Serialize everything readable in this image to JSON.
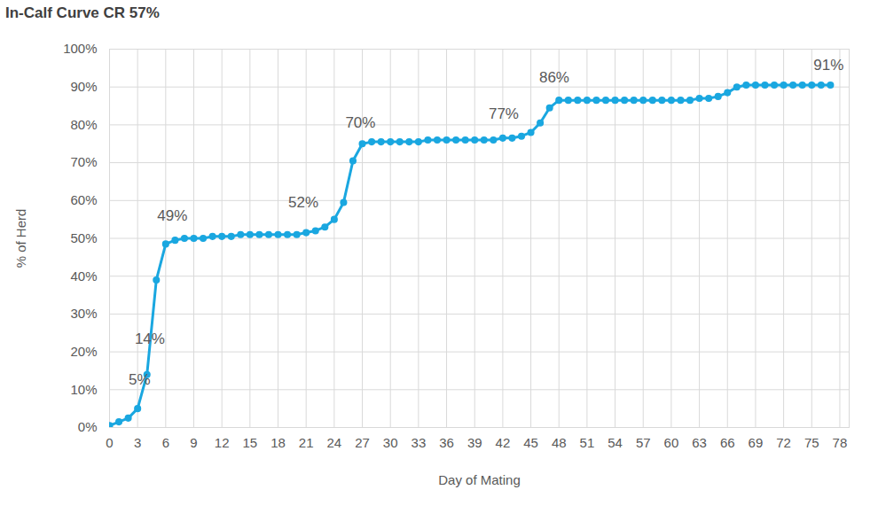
{
  "chart_data": {
    "type": "line",
    "title": "In-Calf Curve CR 57%",
    "x_label": "Day of Mating",
    "y_label": "% of Herd",
    "x": [
      0,
      1,
      2,
      3,
      4,
      5,
      6,
      7,
      8,
      9,
      10,
      11,
      12,
      13,
      14,
      15,
      16,
      17,
      18,
      19,
      20,
      21,
      22,
      23,
      24,
      25,
      26,
      27,
      28,
      29,
      30,
      31,
      32,
      33,
      34,
      35,
      36,
      37,
      38,
      39,
      40,
      41,
      42,
      43,
      44,
      45,
      46,
      47,
      48,
      49,
      50,
      51,
      52,
      53,
      54,
      55,
      56,
      57,
      58,
      59,
      60,
      61,
      62,
      63,
      64,
      65,
      66,
      67,
      68,
      69,
      70,
      71,
      72,
      73,
      74,
      75,
      76,
      77
    ],
    "series": [
      {
        "name": "% of Herd",
        "color": "#1aa7e0",
        "marker": "circle",
        "line_style": "solid",
        "values": [
          0.5,
          1.5,
          2.5,
          5,
          14,
          39,
          48.5,
          49.5,
          50,
          50,
          50,
          50.5,
          50.5,
          50.5,
          51,
          51,
          51,
          51,
          51,
          51,
          51,
          51.5,
          52,
          53,
          55,
          59.5,
          70.5,
          75,
          75.5,
          75.5,
          75.5,
          75.5,
          75.5,
          75.5,
          76,
          76,
          76,
          76,
          76,
          76,
          76,
          76,
          76.5,
          76.5,
          77,
          78,
          80.5,
          84.5,
          86.5,
          86.5,
          86.5,
          86.5,
          86.5,
          86.5,
          86.5,
          86.5,
          86.5,
          86.5,
          86.5,
          86.5,
          86.5,
          86.5,
          86.5,
          87,
          87,
          87.5,
          88.5,
          90,
          90.5,
          90.5,
          90.5,
          90.5,
          90.5,
          90.5,
          90.5,
          90.5,
          90.5,
          90.5
        ]
      }
    ],
    "xlim": [
      0,
      79
    ],
    "xticks": [
      0,
      3,
      6,
      9,
      12,
      15,
      18,
      21,
      24,
      27,
      30,
      33,
      36,
      39,
      42,
      45,
      48,
      51,
      54,
      57,
      60,
      63,
      66,
      69,
      72,
      75,
      78
    ],
    "ylim": [
      0,
      100
    ],
    "yticks": [
      {
        "value": 0,
        "label": "0%"
      },
      {
        "value": 10,
        "label": "10%"
      },
      {
        "value": 20,
        "label": "20%"
      },
      {
        "value": 30,
        "label": "30%"
      },
      {
        "value": 40,
        "label": "40%"
      },
      {
        "value": 50,
        "label": "50%"
      },
      {
        "value": 60,
        "label": "60%"
      },
      {
        "value": 70,
        "label": "70%"
      },
      {
        "value": 80,
        "label": "80%"
      },
      {
        "value": 90,
        "label": "90%"
      },
      {
        "value": 100,
        "label": "100%"
      }
    ],
    "grid": true,
    "annotations": [
      {
        "text": "5%",
        "x": 3.2,
        "y": 12.6
      },
      {
        "text": "14%",
        "x": 4.3,
        "y": 23.4
      },
      {
        "text": "49%",
        "x": 6.7,
        "y": 56
      },
      {
        "text": "52%",
        "x": 20.7,
        "y": 59.5
      },
      {
        "text": "70%",
        "x": 26.8,
        "y": 80.5
      },
      {
        "text": "77%",
        "x": 42.1,
        "y": 83
      },
      {
        "text": "86%",
        "x": 47.5,
        "y": 92.5
      },
      {
        "text": "91%",
        "x": 76.8,
        "y": 95.8
      }
    ]
  }
}
